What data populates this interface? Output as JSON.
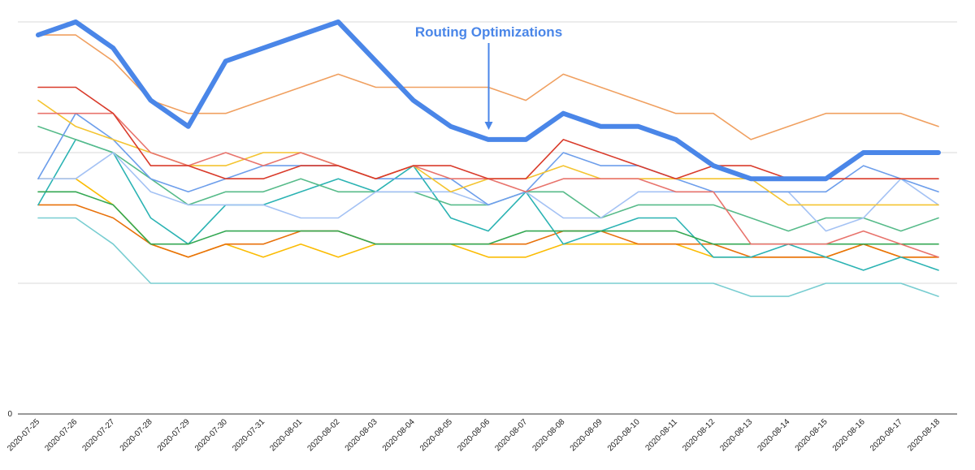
{
  "chart_data": {
    "type": "line",
    "title": "",
    "xlabel": "",
    "ylabel": "",
    "ylim": [
      0,
      30
    ],
    "y_gridlines": [
      0,
      10,
      20,
      30
    ],
    "y_tick_labels": [
      "0"
    ],
    "grid": "horizontal",
    "legend": "none",
    "categories": [
      "2020-07-25",
      "2020-07-26",
      "2020-07-27",
      "2020-07-28",
      "2020-07-29",
      "2020-07-30",
      "2020-07-31",
      "2020-08-01",
      "2020-08-02",
      "2020-08-03",
      "2020-08-04",
      "2020-08-05",
      "2020-08-06",
      "2020-08-07",
      "2020-08-08",
      "2020-08-09",
      "2020-08-10",
      "2020-08-11",
      "2020-08-12",
      "2020-08-13",
      "2020-08-14",
      "2020-08-15",
      "2020-08-16",
      "2020-08-17",
      "2020-08-18"
    ],
    "annotation": {
      "text": "Routing Optimizations",
      "target_category": "2020-08-06",
      "color": "#4a86e8"
    },
    "series": [
      {
        "color": "#4a86e8",
        "width": 6,
        "values": [
          29,
          30,
          28,
          24,
          22,
          27,
          28,
          29,
          30,
          27,
          24,
          22,
          21,
          21,
          23,
          22,
          22,
          21,
          19,
          18,
          18,
          18,
          20,
          20,
          20
        ]
      },
      {
        "color": "#f0a060",
        "width": 1.6,
        "values": [
          29,
          29,
          27,
          24,
          23,
          23,
          24,
          25,
          26,
          25,
          25,
          25,
          25,
          24,
          26,
          25,
          24,
          23,
          23,
          21,
          22,
          23,
          23,
          23,
          22
        ]
      },
      {
        "color": "#d93b2b",
        "width": 1.6,
        "values": [
          25,
          25,
          23,
          19,
          19,
          18,
          18,
          19,
          19,
          18,
          19,
          19,
          18,
          18,
          21,
          20,
          19,
          18,
          19,
          19,
          18,
          18,
          18,
          18,
          18
        ]
      },
      {
        "color": "#e8736c",
        "width": 1.6,
        "values": [
          23,
          23,
          23,
          20,
          19,
          20,
          19,
          20,
          19,
          18,
          19,
          18,
          18,
          17,
          18,
          18,
          18,
          17,
          17,
          13,
          13,
          13,
          14,
          13,
          12
        ]
      },
      {
        "color": "#f4c430",
        "width": 1.6,
        "values": [
          24,
          22,
          21,
          20,
          19,
          19,
          20,
          20,
          19,
          18,
          19,
          17,
          18,
          18,
          19,
          18,
          18,
          18,
          18,
          18,
          16,
          16,
          16,
          16,
          16
        ]
      },
      {
        "color": "#6d9eeb",
        "width": 1.6,
        "values": [
          18,
          23,
          21,
          18,
          17,
          18,
          19,
          19,
          19,
          18,
          18,
          18,
          16,
          17,
          20,
          19,
          19,
          18,
          17,
          17,
          17,
          17,
          19,
          18,
          17
        ]
      },
      {
        "color": "#a4c2f4",
        "width": 1.6,
        "values": [
          18,
          18,
          20,
          17,
          16,
          16,
          16,
          15,
          15,
          17,
          17,
          17,
          16,
          17,
          15,
          15,
          17,
          17,
          17,
          17,
          17,
          14,
          15,
          18,
          16
        ]
      },
      {
        "color": "#57bb8a",
        "width": 1.6,
        "values": [
          22,
          21,
          20,
          18,
          16,
          17,
          17,
          18,
          17,
          17,
          17,
          16,
          16,
          17,
          17,
          15,
          16,
          16,
          16,
          15,
          14,
          15,
          15,
          14,
          15
        ]
      },
      {
        "color": "#34a853",
        "width": 1.6,
        "values": [
          17,
          17,
          16,
          13,
          13,
          14,
          14,
          14,
          14,
          13,
          13,
          13,
          13,
          14,
          14,
          14,
          14,
          14,
          13,
          13,
          13,
          13,
          13,
          13,
          13
        ]
      },
      {
        "color": "#2bb3b3",
        "width": 1.6,
        "values": [
          16,
          21,
          20,
          15,
          13,
          16,
          16,
          17,
          18,
          17,
          19,
          15,
          14,
          17,
          13,
          14,
          15,
          15,
          12,
          12,
          13,
          12,
          11,
          12,
          11
        ]
      },
      {
        "color": "#e8710a",
        "width": 1.6,
        "values": [
          16,
          16,
          15,
          13,
          12,
          13,
          13,
          14,
          14,
          13,
          13,
          13,
          13,
          13,
          14,
          14,
          13,
          13,
          13,
          12,
          12,
          12,
          13,
          12,
          12
        ]
      },
      {
        "color": "#fbbc04",
        "width": 1.6,
        "values": [
          18,
          18,
          16,
          13,
          12,
          13,
          12,
          13,
          12,
          13,
          13,
          13,
          12,
          12,
          13,
          13,
          13,
          13,
          12,
          12,
          12,
          12,
          13,
          12,
          12
        ]
      },
      {
        "color": "#78cdd1",
        "width": 1.6,
        "values": [
          15,
          15,
          13,
          10,
          10,
          10,
          10,
          10,
          10,
          10,
          10,
          10,
          10,
          10,
          10,
          10,
          10,
          10,
          10,
          9,
          9,
          10,
          10,
          10,
          9
        ]
      }
    ]
  }
}
